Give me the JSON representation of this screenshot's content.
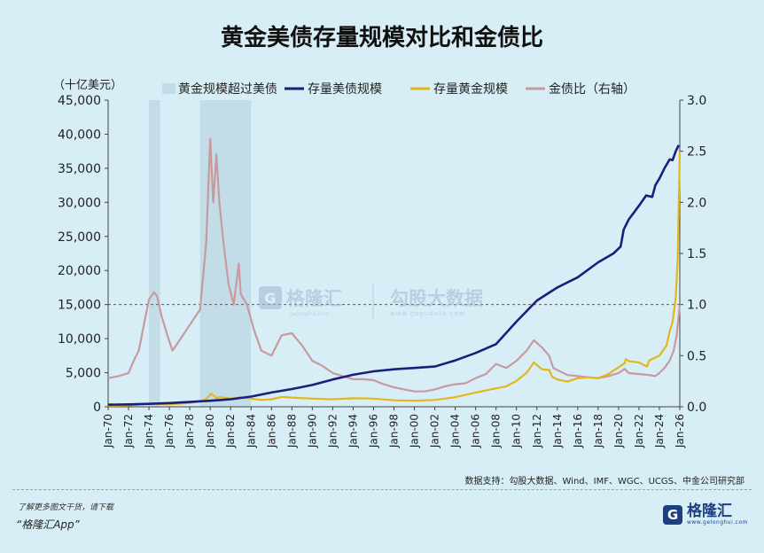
{
  "title": "黄金美债存量规模对比和金债比",
  "source_note": "数据支持：勾股大数据、Wind、IMF、WGC、UCGS、中金公司研究部",
  "footer": {
    "promo_line": "了解更多图文干货，请下载",
    "app_name": "“格隆汇App”",
    "brand_name": "格隆汇",
    "brand_site": "www.gelonghui.com"
  },
  "watermark": {
    "brand1": "格隆汇",
    "brand1_site": "gelonghui.com",
    "brand2": "勾股大数据",
    "brand2_site": "www.gogudata.com"
  },
  "colors": {
    "treasury": "#1b1e7c",
    "gold": "#e3b71a",
    "ratio": "#c79a9f",
    "shade": "#c3dde8",
    "refline": "#d22424",
    "background": "#d8eef6"
  },
  "chart_data": {
    "type": "line",
    "unit_left": "（十亿美元）",
    "yleft": {
      "min": 0,
      "max": 45000,
      "ticks": [
        "0",
        "5,000",
        "10,000",
        "15,000",
        "20,000",
        "25,000",
        "30,000",
        "35,000",
        "40,000",
        "45,000"
      ]
    },
    "yright": {
      "min": 0,
      "max": 3.0,
      "ticks": [
        "0.0",
        "0.5",
        "1.0",
        "1.5",
        "2.0",
        "2.5",
        "3.0"
      ]
    },
    "xlim": [
      1970,
      2026
    ],
    "x_ticks": [
      "Jan-70",
      "Jan-72",
      "Jan-74",
      "Jan-76",
      "Jan-78",
      "Jan-80",
      "Jan-82",
      "Jan-84",
      "Jan-86",
      "Jan-88",
      "Jan-90",
      "Jan-92",
      "Jan-94",
      "Jan-96",
      "Jan-98",
      "Jan-00",
      "Jan-02",
      "Jan-04",
      "Jan-06",
      "Jan-08",
      "Jan-10",
      "Jan-12",
      "Jan-14",
      "Jan-16",
      "Jan-18",
      "Jan-20",
      "Jan-22",
      "Jan-24",
      "Jan-26"
    ],
    "reference_line": {
      "axis": "right",
      "value": 1.0
    },
    "legend": [
      {
        "label": "黄金规模超过美债",
        "kind": "shade"
      },
      {
        "label": "存量美债规模",
        "kind": "line",
        "color": "#1b1e7c"
      },
      {
        "label": "存量黄金规模",
        "kind": "line",
        "color": "#e3b71a"
      },
      {
        "label": "金债比（右轴）",
        "kind": "line",
        "color": "#c79a9f"
      }
    ],
    "shaded_periods": [
      [
        1974.0,
        1975.1
      ],
      [
        1979.0,
        1984.0
      ]
    ],
    "series": [
      {
        "name": "存量美债规模",
        "axis": "left",
        "points": [
          [
            1970,
            300
          ],
          [
            1972,
            350
          ],
          [
            1974,
            430
          ],
          [
            1976,
            550
          ],
          [
            1978,
            700
          ],
          [
            1980,
            880
          ],
          [
            1982,
            1100
          ],
          [
            1984,
            1500
          ],
          [
            1986,
            2100
          ],
          [
            1988,
            2600
          ],
          [
            1990,
            3200
          ],
          [
            1992,
            4000
          ],
          [
            1994,
            4700
          ],
          [
            1996,
            5200
          ],
          [
            1998,
            5500
          ],
          [
            2000,
            5700
          ],
          [
            2002,
            5900
          ],
          [
            2004,
            6800
          ],
          [
            2006,
            7900
          ],
          [
            2008,
            9200
          ],
          [
            2010,
            12500
          ],
          [
            2012,
            15600
          ],
          [
            2014,
            17500
          ],
          [
            2016,
            19000
          ],
          [
            2018,
            21200
          ],
          [
            2019.5,
            22500
          ],
          [
            2020.2,
            23500
          ],
          [
            2020.5,
            26000
          ],
          [
            2021,
            27500
          ],
          [
            2022,
            29500
          ],
          [
            2022.7,
            31000
          ],
          [
            2023.3,
            30800
          ],
          [
            2023.6,
            32500
          ],
          [
            2024,
            33500
          ],
          [
            2024.5,
            35000
          ],
          [
            2025,
            36300
          ],
          [
            2025.3,
            36200
          ],
          [
            2025.6,
            37500
          ],
          [
            2025.9,
            38400
          ]
        ]
      },
      {
        "name": "存量黄金规模",
        "axis": "left",
        "points": [
          [
            1970,
            150
          ],
          [
            1972,
            200
          ],
          [
            1974,
            450
          ],
          [
            1976,
            350
          ],
          [
            1978,
            550
          ],
          [
            1979.5,
            1000
          ],
          [
            1980.1,
            1900
          ],
          [
            1980.6,
            1300
          ],
          [
            1981,
            1400
          ],
          [
            1982,
            1200
          ],
          [
            1983,
            1400
          ],
          [
            1984,
            1200
          ],
          [
            1985,
            1000
          ],
          [
            1986,
            1100
          ],
          [
            1987,
            1450
          ],
          [
            1988,
            1350
          ],
          [
            1990,
            1200
          ],
          [
            1992,
            1100
          ],
          [
            1994,
            1250
          ],
          [
            1996,
            1200
          ],
          [
            1998,
            950
          ],
          [
            2000,
            900
          ],
          [
            2002,
            1000
          ],
          [
            2004,
            1400
          ],
          [
            2006,
            2100
          ],
          [
            2008,
            2700
          ],
          [
            2009,
            3000
          ],
          [
            2010,
            3800
          ],
          [
            2011,
            5000
          ],
          [
            2011.7,
            6500
          ],
          [
            2012.5,
            5500
          ],
          [
            2013.2,
            5400
          ],
          [
            2013.5,
            4400
          ],
          [
            2014,
            4000
          ],
          [
            2015,
            3700
          ],
          [
            2016,
            4200
          ],
          [
            2017,
            4300
          ],
          [
            2018,
            4200
          ],
          [
            2019,
            4800
          ],
          [
            2020.6,
            6400
          ],
          [
            2020.7,
            7000
          ],
          [
            2021,
            6700
          ],
          [
            2022,
            6500
          ],
          [
            2022.8,
            5900
          ],
          [
            2023,
            6800
          ],
          [
            2024,
            7500
          ],
          [
            2024.7,
            9000
          ],
          [
            2025,
            11000
          ],
          [
            2025.3,
            12500
          ],
          [
            2025.6,
            16000
          ],
          [
            2025.8,
            22000
          ],
          [
            2026,
            37500
          ]
        ]
      },
      {
        "name": "金债比（右轴）",
        "axis": "right",
        "points": [
          [
            1970,
            0.28
          ],
          [
            1971,
            0.3
          ],
          [
            1972,
            0.33
          ],
          [
            1972.5,
            0.45
          ],
          [
            1973,
            0.55
          ],
          [
            1973.5,
            0.8
          ],
          [
            1974,
            1.05
          ],
          [
            1974.5,
            1.12
          ],
          [
            1974.8,
            1.08
          ],
          [
            1975.2,
            0.9
          ],
          [
            1975.8,
            0.7
          ],
          [
            1976.3,
            0.55
          ],
          [
            1977,
            0.65
          ],
          [
            1978,
            0.8
          ],
          [
            1979,
            0.95
          ],
          [
            1979.6,
            1.6
          ],
          [
            1980,
            2.62
          ],
          [
            1980.3,
            2.0
          ],
          [
            1980.6,
            2.47
          ],
          [
            1980.9,
            2.0
          ],
          [
            1981.3,
            1.6
          ],
          [
            1981.8,
            1.2
          ],
          [
            1982.3,
            1.0
          ],
          [
            1982.8,
            1.4
          ],
          [
            1983,
            1.1
          ],
          [
            1983.6,
            1.0
          ],
          [
            1984.3,
            0.75
          ],
          [
            1985,
            0.55
          ],
          [
            1986,
            0.5
          ],
          [
            1987,
            0.7
          ],
          [
            1988,
            0.72
          ],
          [
            1989,
            0.6
          ],
          [
            1990,
            0.45
          ],
          [
            1991,
            0.4
          ],
          [
            1992,
            0.33
          ],
          [
            1993,
            0.3
          ],
          [
            1994,
            0.27
          ],
          [
            1995,
            0.27
          ],
          [
            1996,
            0.26
          ],
          [
            1997,
            0.22
          ],
          [
            1998,
            0.19
          ],
          [
            1999,
            0.17
          ],
          [
            2000,
            0.15
          ],
          [
            2001,
            0.15
          ],
          [
            2002,
            0.17
          ],
          [
            2003,
            0.2
          ],
          [
            2004,
            0.22
          ],
          [
            2005,
            0.23
          ],
          [
            2006,
            0.28
          ],
          [
            2007,
            0.32
          ],
          [
            2008,
            0.42
          ],
          [
            2009,
            0.38
          ],
          [
            2010,
            0.45
          ],
          [
            2011,
            0.55
          ],
          [
            2011.7,
            0.65
          ],
          [
            2012.5,
            0.58
          ],
          [
            2013.2,
            0.5
          ],
          [
            2013.6,
            0.38
          ],
          [
            2014,
            0.36
          ],
          [
            2015,
            0.31
          ],
          [
            2016,
            0.3
          ],
          [
            2017,
            0.29
          ],
          [
            2018,
            0.28
          ],
          [
            2019,
            0.3
          ],
          [
            2020,
            0.33
          ],
          [
            2020.6,
            0.37
          ],
          [
            2021,
            0.33
          ],
          [
            2022,
            0.32
          ],
          [
            2023,
            0.31
          ],
          [
            2023.6,
            0.3
          ],
          [
            2024,
            0.33
          ],
          [
            2024.5,
            0.38
          ],
          [
            2025,
            0.45
          ],
          [
            2025.4,
            0.55
          ],
          [
            2025.7,
            0.7
          ],
          [
            2026,
            1.0
          ]
        ]
      }
    ]
  }
}
